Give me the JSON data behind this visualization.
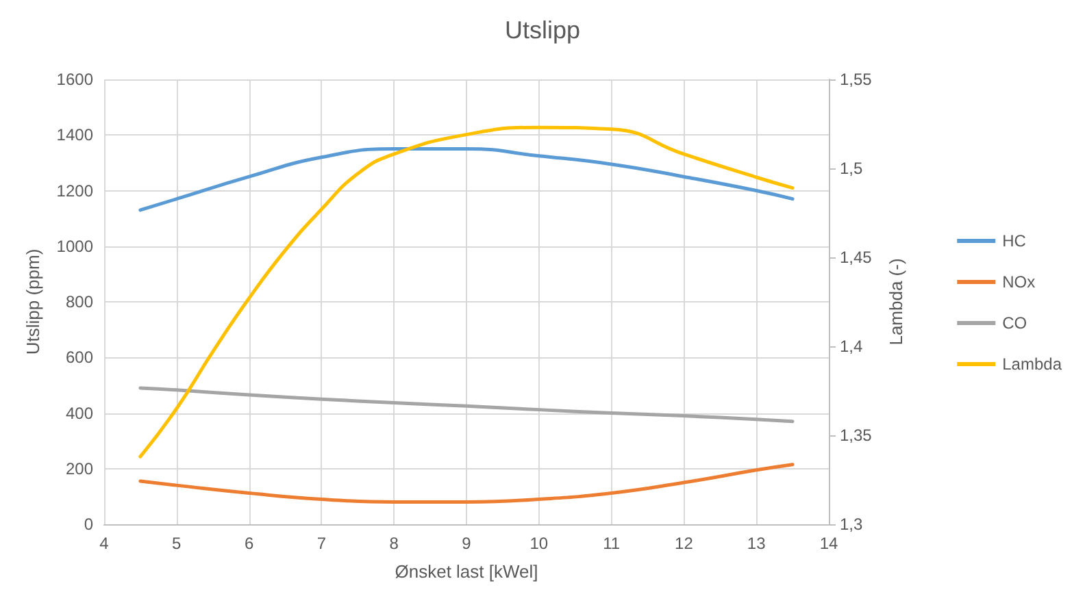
{
  "chart_data": {
    "type": "line",
    "title": "Utslipp",
    "xlabel": "Ønsket last [kWel]",
    "ylabel": "Utslipp (ppm)",
    "y2label": "Lambda (-)",
    "xlim": [
      4,
      14
    ],
    "xticks": [
      4,
      5,
      6,
      7,
      8,
      9,
      10,
      11,
      12,
      13,
      14
    ],
    "ylim": [
      0,
      1600
    ],
    "yticks": [
      0,
      200,
      400,
      600,
      800,
      1000,
      1200,
      1400,
      1600
    ],
    "y2lim": [
      1.3,
      1.55
    ],
    "y2ticks": [
      {
        "value": 1.3,
        "label": "1,3"
      },
      {
        "value": 1.35,
        "label": "1,35"
      },
      {
        "value": 1.4,
        "label": "1,4"
      },
      {
        "value": 1.45,
        "label": "1,45"
      },
      {
        "value": 1.5,
        "label": "1,5"
      },
      {
        "value": 1.55,
        "label": "1,55"
      }
    ],
    "grid": true,
    "legend": "right",
    "marker": "none",
    "line_style": "solid",
    "series": [
      {
        "name": "HC",
        "color": "#5b9bd5",
        "x": [
          4.5,
          5,
          6,
          7,
          8,
          9,
          10,
          11,
          12,
          13,
          13.5
        ],
        "values": [
          1130,
          1170,
          1250,
          1320,
          1350,
          1350,
          1325,
          1295,
          1250,
          1200,
          1170
        ]
      },
      {
        "name": "NOx",
        "color": "#ed7d31",
        "x": [
          4.5,
          5,
          6,
          7,
          8,
          9,
          10,
          11,
          12,
          13,
          13.5
        ],
        "values": [
          155,
          140,
          112,
          90,
          80,
          80,
          90,
          112,
          150,
          195,
          215
        ]
      },
      {
        "name": "CO",
        "color": "#a5a5a5",
        "x": [
          4.5,
          5,
          6,
          7,
          8,
          9,
          10,
          11,
          12,
          13,
          13.5
        ],
        "values": [
          490,
          483,
          465,
          450,
          437,
          425,
          412,
          400,
          390,
          377,
          370
        ]
      },
      {
        "name": "Lambda",
        "color": "#ffc000",
        "axis": "y2",
        "x": [
          4.5,
          5,
          5.5,
          6,
          6.5,
          7,
          7.5,
          8,
          9,
          10,
          11,
          12,
          13,
          13.5
        ],
        "values": [
          1.338,
          1.365,
          1.397,
          1.427,
          1.454,
          1.477,
          1.497,
          1.508,
          1.519,
          1.523,
          1.522,
          1.508,
          1.495,
          1.489
        ]
      }
    ]
  }
}
